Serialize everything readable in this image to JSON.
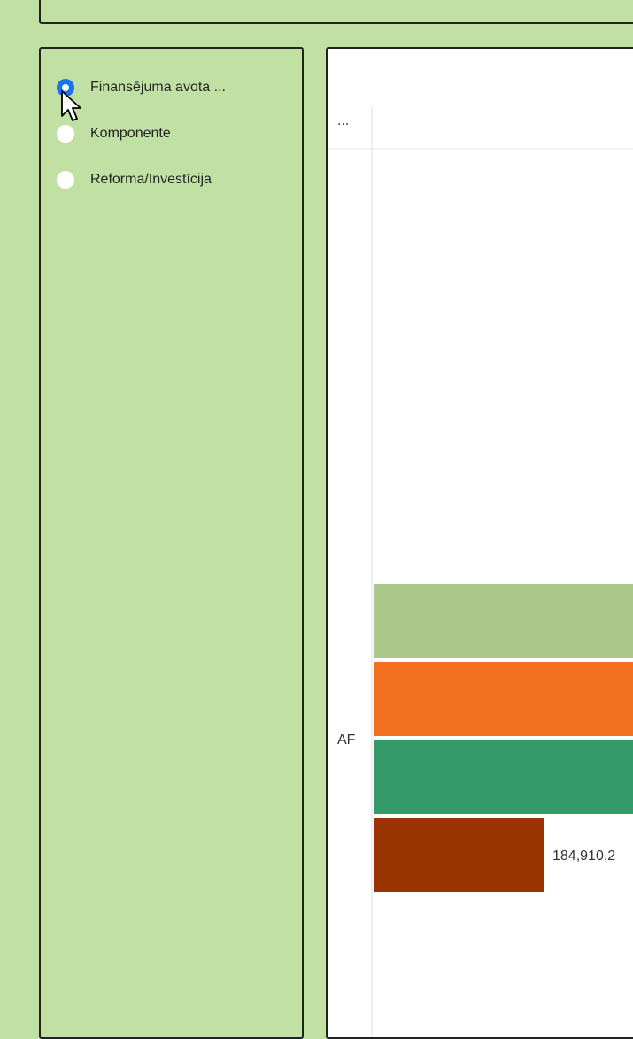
{
  "slicer": {
    "options": [
      {
        "label": "Finansējuma avota ...",
        "selected": true
      },
      {
        "label": "Komponente",
        "selected": false
      },
      {
        "label": "Reforma/Investīcija",
        "selected": false
      }
    ]
  },
  "chart_header": {
    "more_options": "..."
  },
  "chart_data": {
    "type": "bar",
    "orientation": "horizontal",
    "categories": [
      "AF"
    ],
    "series": [
      {
        "color": "#aac887"
      },
      {
        "color": "#f37021"
      },
      {
        "color": "#339966"
      },
      {
        "color": "#993300",
        "values": [
          184910
        ]
      }
    ],
    "data_labels": [
      "184,910,2"
    ]
  }
}
